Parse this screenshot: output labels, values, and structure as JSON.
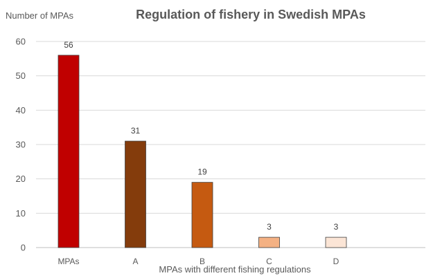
{
  "chart_data": {
    "type": "bar",
    "title": "Regulation of fishery in Swedish  MPAs",
    "ylabel": "Number of MPAs",
    "xlabel": "MPAs with different fishing regulations",
    "categories": [
      "MPAs",
      "A",
      "B",
      "C",
      "D"
    ],
    "values": [
      56,
      31,
      19,
      3,
      3
    ],
    "data_labels": [
      "56",
      "31",
      "19",
      "3",
      "3"
    ],
    "bar_colors": [
      "#c00000",
      "#843c0c",
      "#c55a11",
      "#f4b183",
      "#fbe5d6"
    ],
    "bar_outline": "#404040",
    "ylim": [
      0,
      60
    ],
    "yticks": [
      0,
      10,
      20,
      30,
      40,
      50,
      60
    ],
    "grid": true,
    "legend": "none"
  }
}
